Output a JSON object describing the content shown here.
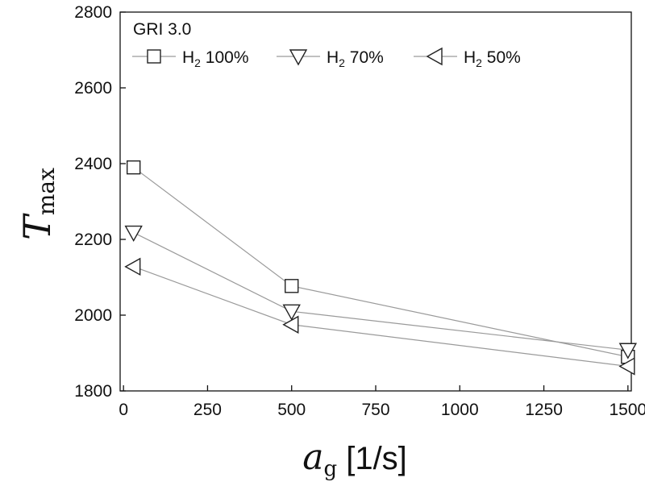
{
  "chart_data": {
    "type": "line",
    "title": "",
    "xlabel": {
      "main": "a",
      "sub": "g",
      "unit": " [1/s]"
    },
    "ylabel": {
      "main": "T",
      "sub": "max"
    },
    "xlim": [
      -10,
      1510
    ],
    "ylim": [
      1800,
      2800
    ],
    "xticks": [
      0,
      250,
      500,
      750,
      1000,
      1250,
      1500
    ],
    "yticks": [
      1800,
      2000,
      2200,
      2400,
      2600,
      2800
    ],
    "grid": false,
    "legend": {
      "title": "GRI 3.0",
      "placement": "top-left"
    },
    "x": [
      30,
      500,
      1500
    ],
    "series": [
      {
        "name": "H2 100%",
        "label_main": "H",
        "label_sub": "2",
        "label_rest": " 100%",
        "marker": "square",
        "values": [
          2390,
          2077,
          1890
        ]
      },
      {
        "name": "H2 70%",
        "label_main": "H",
        "label_sub": "2",
        "label_rest": " 70%",
        "marker": "triangle-down",
        "values": [
          2218,
          2010,
          1908
        ]
      },
      {
        "name": "H2 50%",
        "label_main": "H",
        "label_sub": "2",
        "label_rest": " 50%",
        "marker": "triangle-left",
        "values": [
          2128,
          1975,
          1865
        ]
      }
    ],
    "colors": {
      "line": "#9a9a9a",
      "marker": "#222222",
      "axis": "#111111"
    }
  }
}
